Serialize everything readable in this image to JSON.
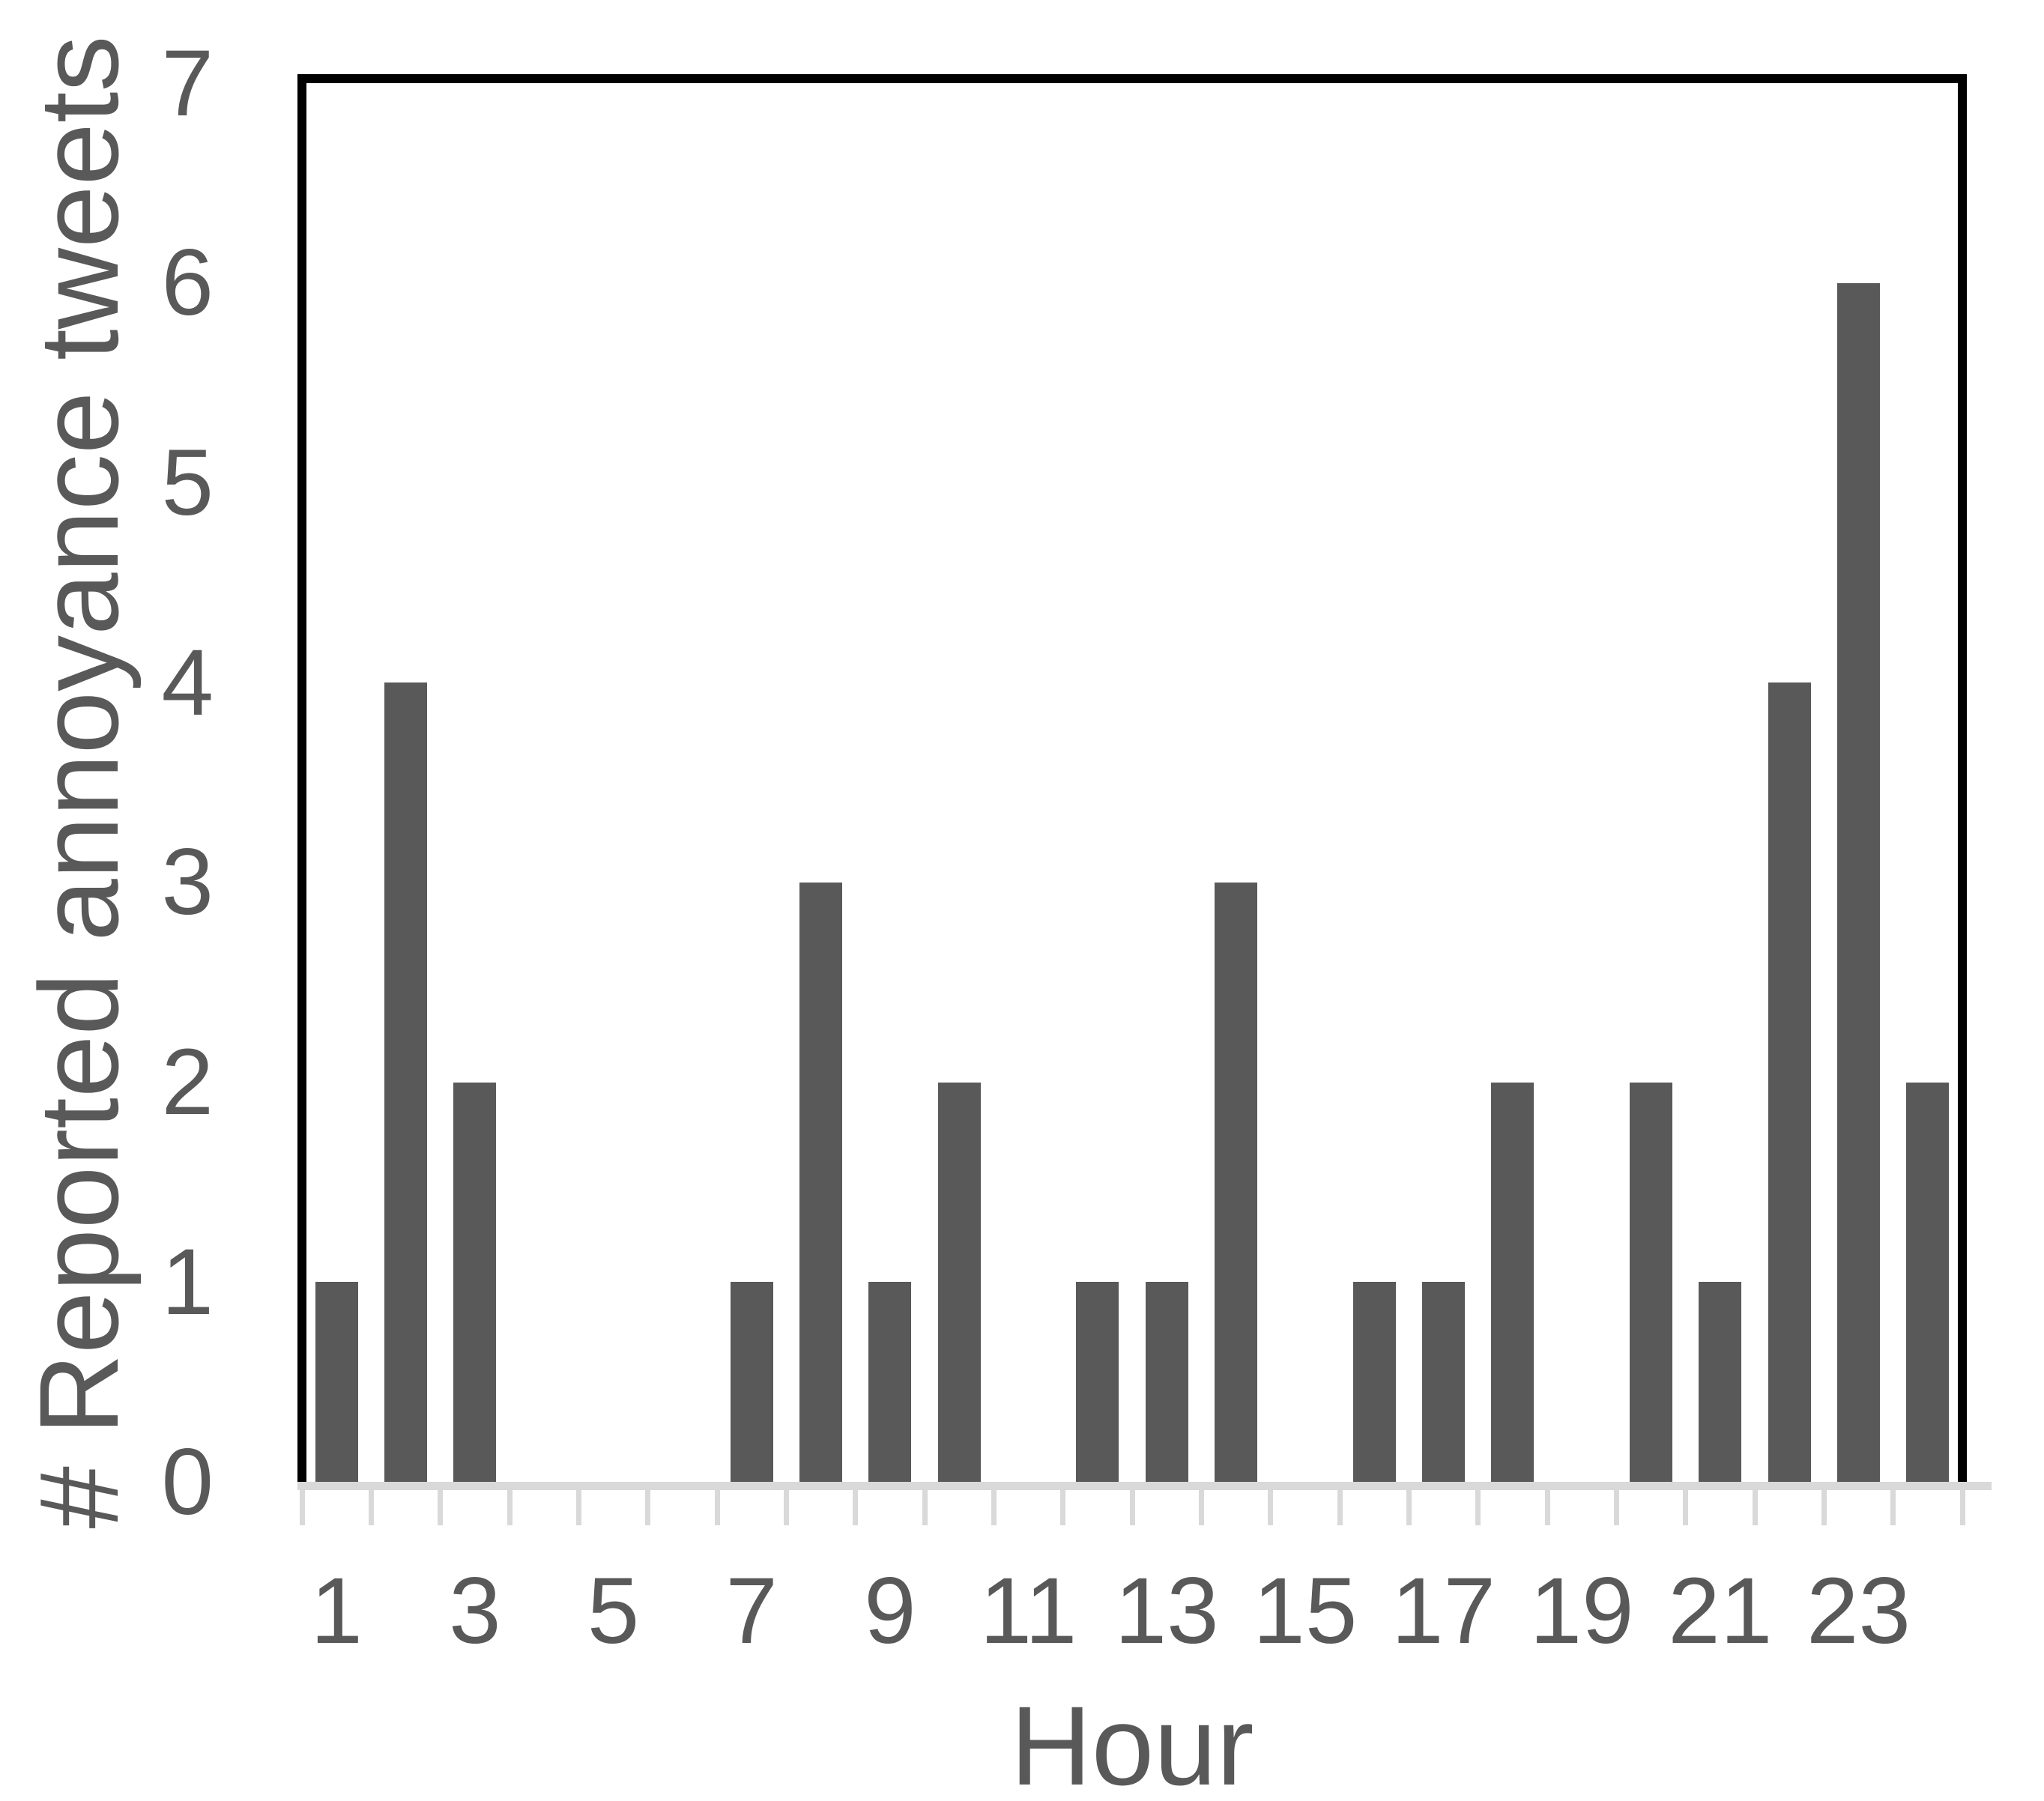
{
  "chart_data": {
    "type": "bar",
    "title": "",
    "xlabel": "Hour",
    "ylabel": "# Reported annoyance tweets",
    "categories": [
      1,
      2,
      3,
      4,
      5,
      6,
      7,
      8,
      9,
      10,
      11,
      12,
      13,
      14,
      15,
      16,
      17,
      18,
      19,
      20,
      21,
      22,
      23,
      24
    ],
    "values": [
      1,
      4,
      2,
      0,
      0,
      0,
      1,
      3,
      1,
      2,
      0,
      1,
      1,
      3,
      0,
      1,
      1,
      2,
      0,
      2,
      1,
      4,
      6,
      2
    ],
    "ylim": [
      0,
      7
    ],
    "yticks": [
      0,
      1,
      2,
      3,
      4,
      5,
      6,
      7
    ],
    "xticks": [
      1,
      3,
      5,
      7,
      9,
      11,
      13,
      15,
      17,
      19,
      21,
      23
    ],
    "grid": false,
    "legend": false,
    "colors": {
      "bar": "#595959",
      "axis_line": "#d9d9d9",
      "text": "#595959",
      "plot_border": "#000000",
      "background": "#ffffff"
    }
  }
}
